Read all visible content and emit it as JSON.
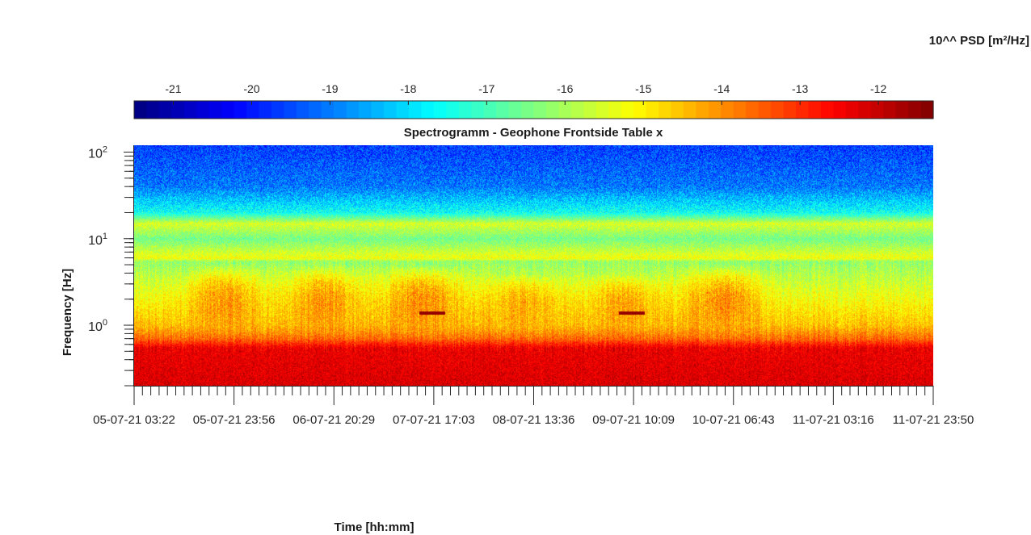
{
  "chart_data": {
    "type": "heatmap",
    "title": "Spectrogramm - Geophone Frontside Table x",
    "xlabel": "Time [hh:mm]",
    "ylabel": "Frequency [Hz]",
    "yscale": "log",
    "ylim": [
      0.2,
      120
    ],
    "y_ticks": [
      1,
      10,
      100
    ],
    "y_tick_labels": [
      {
        "base": "10",
        "exp": "0"
      },
      {
        "base": "10",
        "exp": "1"
      },
      {
        "base": "10",
        "exp": "2"
      }
    ],
    "x_tick_labels": [
      "05-07-21  03:22",
      "05-07-21  23:56",
      "06-07-21  20:29",
      "07-07-21  17:03",
      "08-07-21  13:36",
      "09-07-21  10:09",
      "10-07-21  06:43",
      "11-07-21  03:16",
      "11-07-21  23:50"
    ],
    "colorbar": {
      "label": "10^^ PSD [m²/Hz]",
      "range": [
        -21.5,
        -11.3
      ],
      "ticks": [
        -21,
        -20,
        -19,
        -18,
        -17,
        -16,
        -15,
        -14,
        -13,
        -12
      ],
      "tick_labels": [
        "-21",
        "-20",
        "-19",
        "-18",
        "-17",
        "-16",
        "-15",
        "-14",
        "-13",
        "-12"
      ],
      "colormap": "jet",
      "placement": "top"
    },
    "psd_profile_log10": [
      {
        "freq_hz": 0.2,
        "value": -12.2
      },
      {
        "freq_hz": 0.55,
        "value": -12.4
      },
      {
        "freq_hz": 0.7,
        "value": -13.6
      },
      {
        "freq_hz": 1.0,
        "value": -14.5
      },
      {
        "freq_hz": 3.0,
        "value": -15.6
      },
      {
        "freq_hz": 5.5,
        "value": -16.2
      },
      {
        "freq_hz": 6.0,
        "value": -15.2
      },
      {
        "freq_hz": 10,
        "value": -16.5
      },
      {
        "freq_hz": 15,
        "value": -15.5
      },
      {
        "freq_hz": 20,
        "value": -17.5
      },
      {
        "freq_hz": 40,
        "value": -19.0
      },
      {
        "freq_hz": 120,
        "value": -19.6
      }
    ],
    "activity_bursts": [
      {
        "time_label": "05-07-21  23:56",
        "freq_range_hz": [
          0.7,
          5
        ],
        "value": -14.0
      },
      {
        "time_label": "06-07-21  20:29",
        "freq_range_hz": [
          0.7,
          5
        ],
        "value": -14.0
      },
      {
        "time_label": "07-07-21  17:03",
        "freq_range_hz": [
          0.7,
          5
        ],
        "value": -13.8
      },
      {
        "time_label": "08-07-21  13:36",
        "freq_range_hz": [
          0.7,
          4
        ],
        "value": -14.2
      },
      {
        "time_label": "09-07-21  10:09",
        "freq_range_hz": [
          0.7,
          4
        ],
        "value": -14.2
      },
      {
        "time_label": "10-07-21  06:43",
        "freq_range_hz": [
          0.7,
          5
        ],
        "value": -13.8
      }
    ],
    "narrowband_events": [
      {
        "near_time": "07-07-21  17:03",
        "freq_hz": 1.4,
        "value": -11.5
      },
      {
        "near_time": "09-07-21  10:09",
        "freq_hz": 1.4,
        "value": -11.5
      }
    ],
    "grid": false,
    "legend": "none"
  }
}
